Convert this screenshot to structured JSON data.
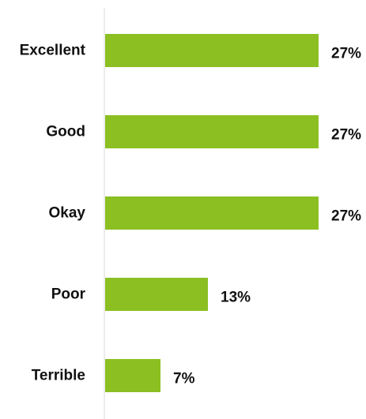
{
  "chart_data": {
    "type": "bar",
    "orientation": "horizontal",
    "categories": [
      "Excellent",
      "Good",
      "Okay",
      "Poor",
      "Terrible"
    ],
    "values": [
      27,
      27,
      27,
      13,
      7
    ],
    "value_labels": [
      "27%",
      "27%",
      "27%",
      "13%",
      "7%"
    ],
    "unit": "%",
    "title": "",
    "xlabel": "",
    "ylabel": "",
    "xlim": [
      0,
      27
    ],
    "grid": false,
    "legend": "none",
    "bar_color": "#8BBF22",
    "axis_color": "#ececec",
    "text_color": "#111111"
  }
}
